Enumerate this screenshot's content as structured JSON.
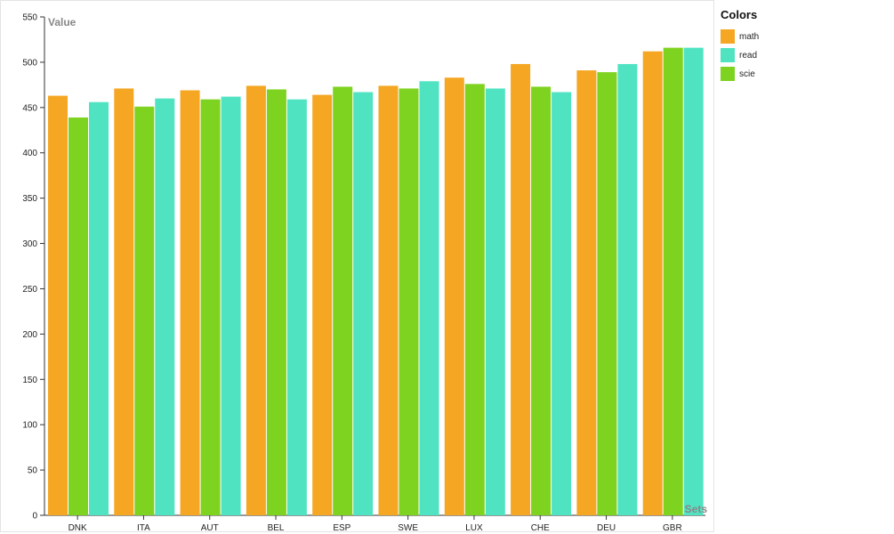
{
  "chart_data": {
    "type": "bar",
    "categories": [
      "DNK",
      "ITA",
      "AUT",
      "BEL",
      "ESP",
      "SWE",
      "LUX",
      "CHE",
      "DEU",
      "GBR"
    ],
    "series": [
      {
        "name": "math",
        "color": "#f5a623",
        "values": [
          463,
          471,
          469,
          474,
          464,
          474,
          483,
          498,
          491,
          512
        ]
      },
      {
        "name": "scie",
        "color": "#7ed321",
        "values": [
          439,
          451,
          459,
          470,
          473,
          471,
          476,
          473,
          489,
          516
        ]
      },
      {
        "name": "read",
        "color": "#50e3c2",
        "values": [
          456,
          460,
          462,
          459,
          467,
          479,
          471,
          467,
          498,
          516
        ]
      }
    ],
    "ylabel": "Value",
    "xlabel": "Sets",
    "ylim": [
      0,
      550
    ],
    "yticks": [
      0,
      50,
      100,
      150,
      200,
      250,
      300,
      350,
      400,
      450,
      500,
      550
    ],
    "grid": false,
    "legend_position": "right"
  },
  "legend": {
    "title": "Colors",
    "items": [
      {
        "label": "math",
        "color": "#f5a623"
      },
      {
        "label": "read",
        "color": "#50e3c2"
      },
      {
        "label": "scie",
        "color": "#7ed321"
      }
    ]
  }
}
